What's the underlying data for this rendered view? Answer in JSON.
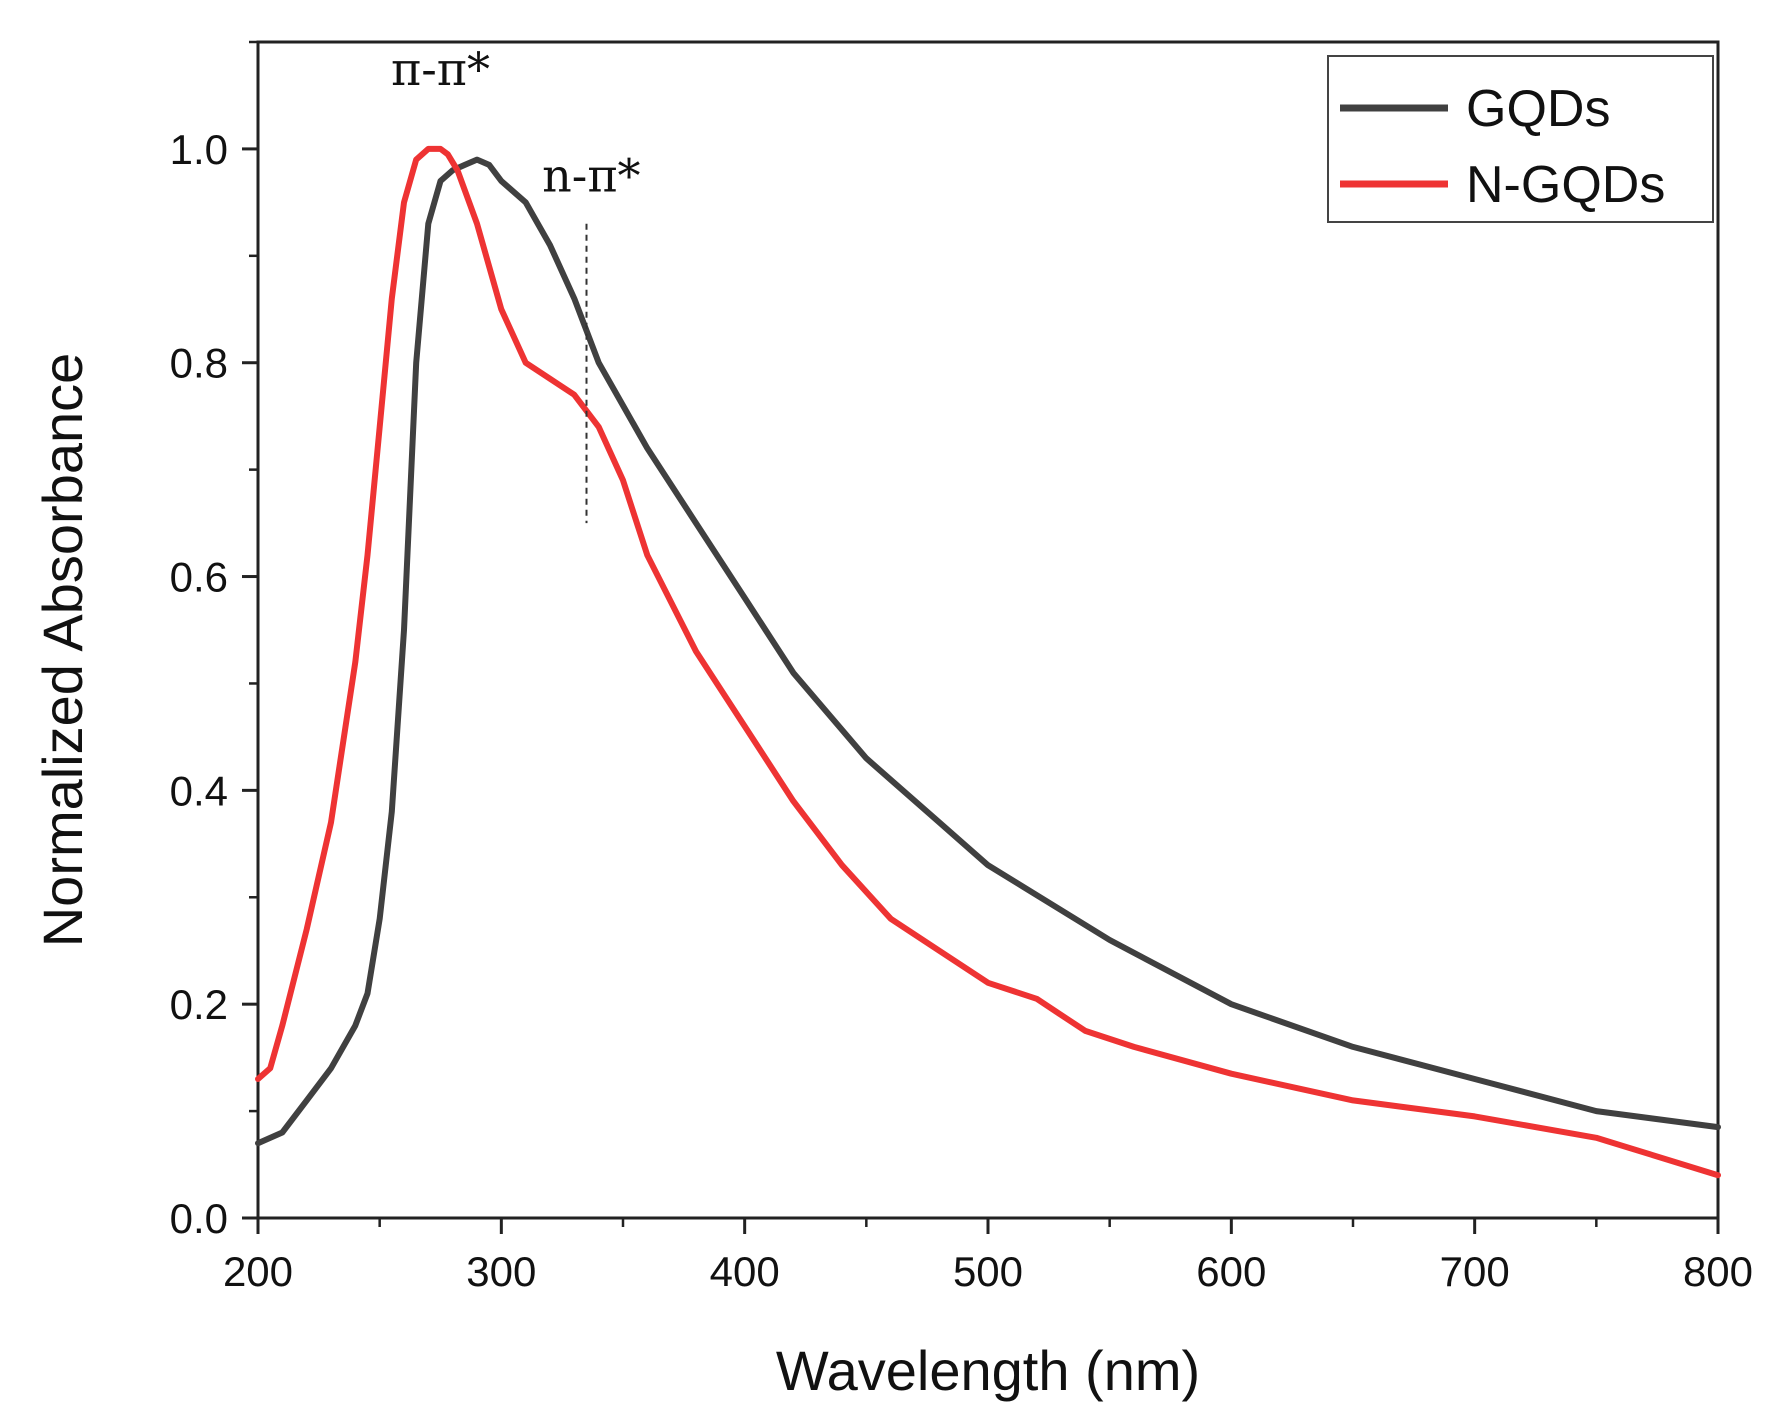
{
  "chart_data": {
    "type": "line",
    "title": "",
    "xlabel": "Wavelength (nm)",
    "ylabel": "Normalized Absorbance",
    "xlim": [
      200,
      800
    ],
    "ylim": [
      0.0,
      1.1
    ],
    "xticks": [
      200,
      300,
      400,
      500,
      600,
      700,
      800
    ],
    "xtick_labels": [
      "200",
      "300",
      "400",
      "500",
      "600",
      "700",
      "800"
    ],
    "yticks": [
      0.0,
      0.2,
      0.4,
      0.6,
      0.8,
      1.0
    ],
    "ytick_labels": [
      "0.0",
      "0.2",
      "0.4",
      "0.6",
      "0.8",
      "1.0"
    ],
    "grid": false,
    "legend": {
      "position": "top-right",
      "entries": [
        "GQDs",
        "N-GQDs"
      ]
    },
    "series": [
      {
        "name": "GQDs",
        "color": "#404040",
        "x": [
          200,
          210,
          220,
          230,
          240,
          245,
          250,
          255,
          260,
          265,
          270,
          275,
          280,
          285,
          290,
          295,
          300,
          310,
          320,
          330,
          340,
          350,
          360,
          380,
          400,
          420,
          450,
          480,
          500,
          550,
          600,
          650,
          700,
          750,
          800
        ],
        "y": [
          0.07,
          0.08,
          0.11,
          0.14,
          0.18,
          0.21,
          0.28,
          0.38,
          0.55,
          0.8,
          0.93,
          0.97,
          0.98,
          0.985,
          0.99,
          0.985,
          0.97,
          0.95,
          0.91,
          0.86,
          0.8,
          0.76,
          0.72,
          0.65,
          0.58,
          0.51,
          0.43,
          0.37,
          0.33,
          0.26,
          0.2,
          0.16,
          0.13,
          0.1,
          0.085
        ]
      },
      {
        "name": "N-GQDs",
        "color": "#ee3333",
        "x": [
          200,
          205,
          210,
          220,
          230,
          240,
          245,
          250,
          255,
          260,
          265,
          270,
          275,
          278,
          282,
          290,
          300,
          310,
          320,
          330,
          340,
          350,
          360,
          380,
          400,
          420,
          440,
          460,
          480,
          500,
          520,
          530,
          540,
          560,
          600,
          650,
          700,
          750,
          800
        ],
        "y": [
          0.13,
          0.14,
          0.18,
          0.27,
          0.37,
          0.52,
          0.62,
          0.74,
          0.86,
          0.95,
          0.99,
          1.0,
          1.0,
          0.995,
          0.98,
          0.93,
          0.85,
          0.8,
          0.785,
          0.77,
          0.74,
          0.69,
          0.62,
          0.53,
          0.46,
          0.39,
          0.33,
          0.28,
          0.25,
          0.22,
          0.205,
          0.19,
          0.175,
          0.16,
          0.135,
          0.11,
          0.095,
          0.075,
          0.04
        ]
      }
    ],
    "annotations": [
      {
        "text": "π-π*",
        "x": 275,
        "y": 1.06
      },
      {
        "text": "n-π*",
        "x": 337,
        "y": 0.96,
        "marker_line": {
          "x": 335,
          "y_from": 0.65,
          "y_to": 0.93
        }
      }
    ]
  }
}
